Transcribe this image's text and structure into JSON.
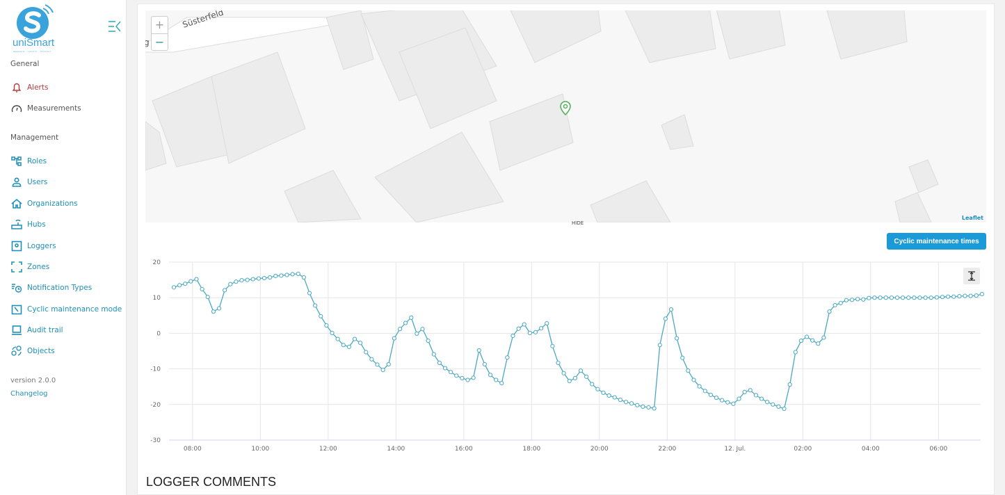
{
  "brand": {
    "name": "uniSmart",
    "tagline": "measure · control · monitor",
    "color": "#3aa3dc"
  },
  "sidebar": {
    "sections": [
      {
        "label": "General"
      },
      {
        "label": "Management"
      }
    ],
    "items": [
      {
        "label": "Alerts",
        "icon": "bell-icon"
      },
      {
        "label": "Measurements",
        "icon": "gauge-icon"
      },
      {
        "label": "Roles",
        "icon": "hierarchy-icon"
      },
      {
        "label": "Users",
        "icon": "user-icon"
      },
      {
        "label": "Organizations",
        "icon": "home-icon"
      },
      {
        "label": "Hubs",
        "icon": "router-icon"
      },
      {
        "label": "Loggers",
        "icon": "logger-icon"
      },
      {
        "label": "Zones",
        "icon": "zone-icon"
      },
      {
        "label": "Notification Types",
        "icon": "alarm-list-icon"
      },
      {
        "label": "Cyclic maintenance mode",
        "icon": "wrench-calendar-icon"
      },
      {
        "label": "Audit trail",
        "icon": "laptop-icon"
      },
      {
        "label": "Objects",
        "icon": "objects-icon"
      }
    ],
    "version": "version  2.0.0",
    "changelog": "Changelog"
  },
  "map": {
    "street": "Süsterfeld",
    "street_fragment": "g",
    "zoom_in": "+",
    "zoom_out": "−",
    "attribution": "Leaflet",
    "hide": "HIDE",
    "marker_color": "#4caf50"
  },
  "actions": {
    "cyclic_button": "Cyclic maintenance times"
  },
  "section_title": "LOGGER COMMENTS",
  "chart_data": {
    "type": "line",
    "color": "#4aa8c0",
    "grid": true,
    "ylim": [
      -30,
      20
    ],
    "yticks": [
      "20",
      "10",
      "0",
      "-10",
      "-20",
      "-30"
    ],
    "xticks": [
      "08:00",
      "10:00",
      "12:00",
      "14:00",
      "16:00",
      "18:00",
      "20:00",
      "22:00",
      "12. Jul.",
      "02:00",
      "04:00",
      "06:00"
    ],
    "x_start": "07:27",
    "x_step_minutes": 10,
    "values": [
      12.9,
      13.5,
      13.9,
      14.6,
      15.2,
      12.4,
      10.2,
      6.1,
      7.0,
      12.1,
      13.8,
      14.5,
      14.9,
      15.0,
      15.2,
      15.4,
      15.5,
      15.7,
      16.1,
      16.2,
      16.4,
      16.6,
      16.7,
      15.7,
      11.3,
      7.8,
      4.8,
      2.2,
      0.1,
      -1.6,
      -3.3,
      -3.8,
      -1.6,
      -2.7,
      -5.3,
      -7.3,
      -8.8,
      -10.3,
      -8.7,
      -1.4,
      1.2,
      2.9,
      4.4,
      -0.1,
      1.2,
      -2.1,
      -5.9,
      -8.3,
      -9.8,
      -10.9,
      -11.9,
      -12.6,
      -13.1,
      -12.5,
      -4.8,
      -8.7,
      -11.7,
      -13.1,
      -14.0,
      -6.8,
      -0.7,
      1.3,
      2.5,
      0.1,
      0.3,
      1.4,
      2.8,
      -3.6,
      -8.3,
      -11.2,
      -13.4,
      -12.6,
      -10.5,
      -12.2,
      -14.3,
      -15.7,
      -16.7,
      -17.5,
      -18.0,
      -18.7,
      -19.3,
      -19.7,
      -20.2,
      -20.6,
      -20.8,
      -21.1,
      -3.3,
      4.1,
      6.7,
      -1.4,
      -6.9,
      -10.5,
      -13.1,
      -14.9,
      -16.2,
      -17.3,
      -18.1,
      -18.8,
      -19.4,
      -19.8,
      -18.4,
      -16.5,
      -16.0,
      -17.4,
      -18.4,
      -19.3,
      -20.0,
      -20.6,
      -21.2,
      -14.4,
      -5.3,
      -2.1,
      -1.0,
      -2.0,
      -2.9,
      -1.2,
      6.1,
      7.9,
      8.5,
      9.3,
      9.4,
      9.6,
      9.5,
      9.9,
      10.0,
      10.0,
      10.0,
      10.0,
      10.0,
      10.0,
      10.0,
      10.0,
      10.0,
      10.0,
      10.0,
      10.1,
      10.2,
      10.3,
      10.3,
      10.4,
      10.5,
      10.5,
      10.6,
      11.0
    ]
  }
}
